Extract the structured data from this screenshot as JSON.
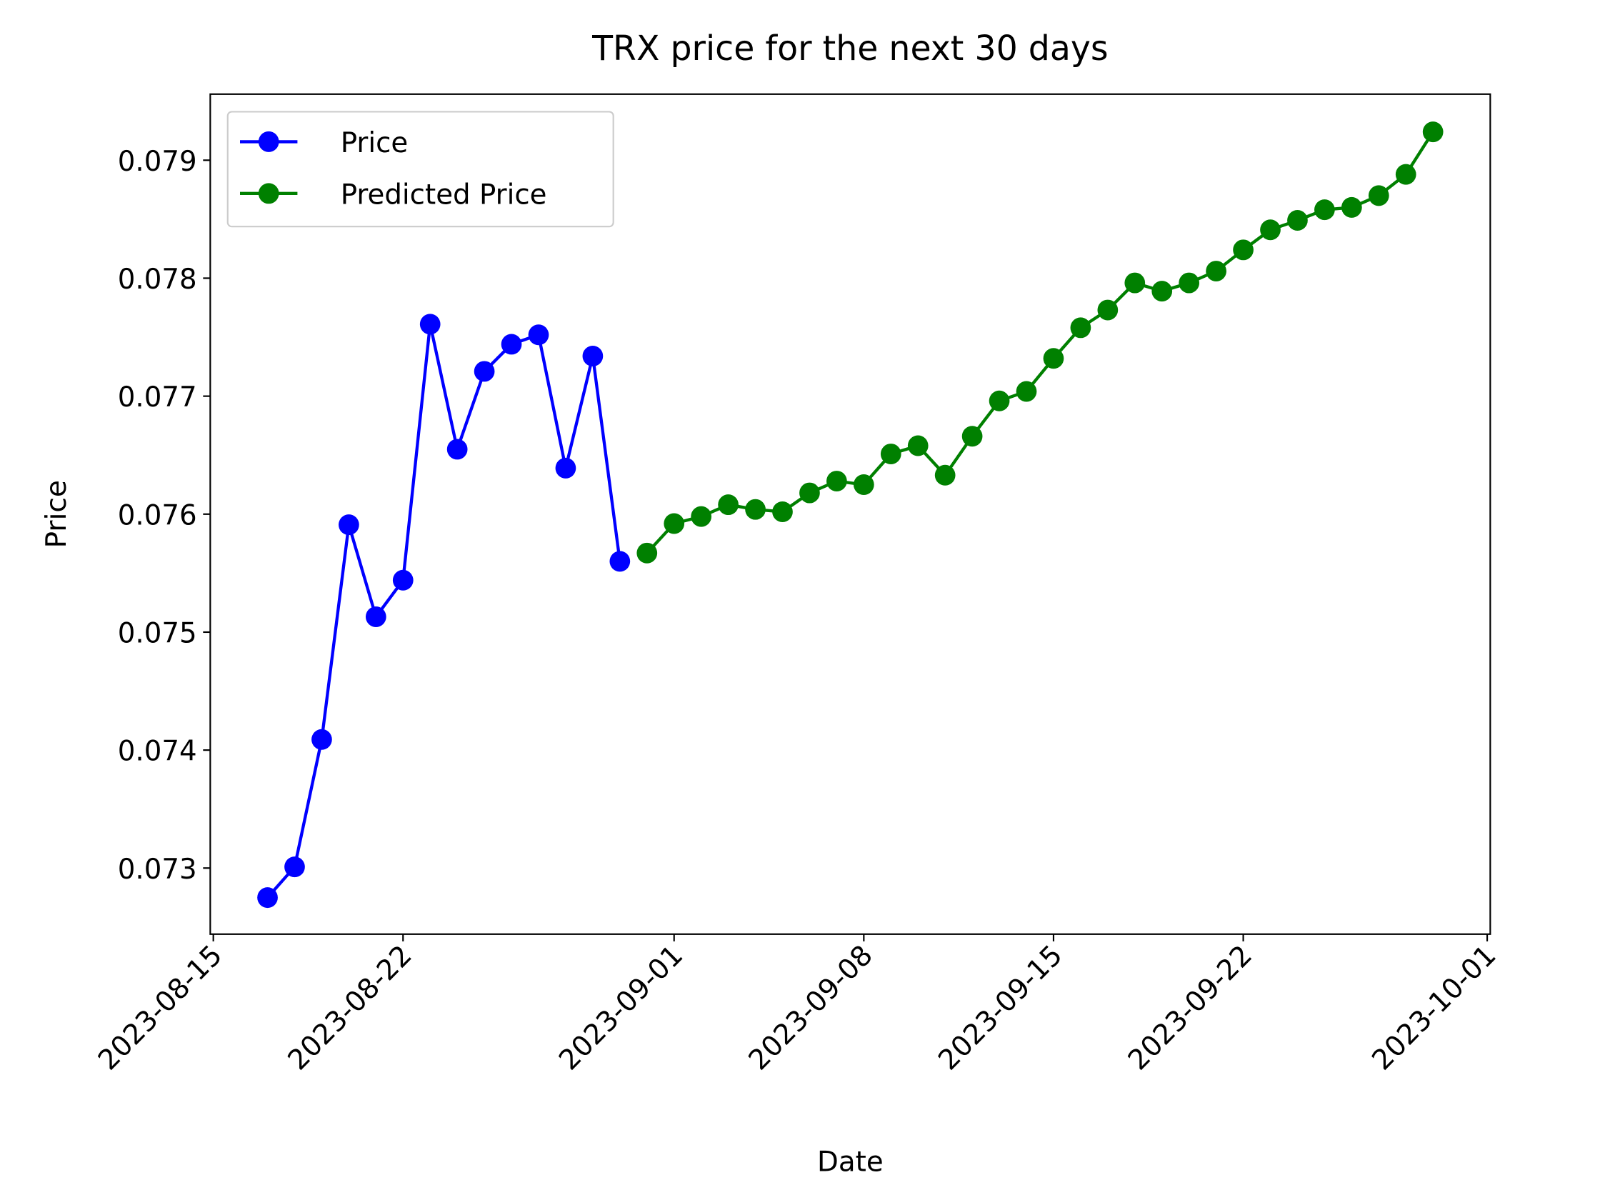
{
  "chart_data": {
    "type": "line",
    "title": "TRX price for the next 30 days",
    "x_label": "Date",
    "y_label": "Price",
    "xlim": [
      "2023-08-14T21:17",
      "2023-10-01T02:43"
    ],
    "xticks": [
      "2023-08-15",
      "2023-08-22",
      "2023-09-01",
      "2023-09-08",
      "2023-09-15",
      "2023-09-22",
      "2023-10-01"
    ],
    "ylim": [
      0.07244,
      0.07956
    ],
    "yticks": [
      0.073,
      0.074,
      0.075,
      0.076,
      0.077,
      0.078,
      0.079
    ],
    "legend": "upper left",
    "series": [
      {
        "name": "Price",
        "color": "#0000ff",
        "x": [
          "2023-08-17",
          "2023-08-18",
          "2023-08-19",
          "2023-08-20",
          "2023-08-21",
          "2023-08-22",
          "2023-08-23",
          "2023-08-24",
          "2023-08-25",
          "2023-08-26",
          "2023-08-27",
          "2023-08-28",
          "2023-08-29",
          "2023-08-30"
        ],
        "values": [
          0.07275,
          0.07301,
          0.07409,
          0.07591,
          0.07513,
          0.07544,
          0.07761,
          0.07655,
          0.07721,
          0.07744,
          0.07752,
          0.07639,
          0.07734,
          0.0756
        ]
      },
      {
        "name": "Predicted Price",
        "color": "#008000",
        "x": [
          "2023-08-31",
          "2023-09-01",
          "2023-09-02",
          "2023-09-03",
          "2023-09-04",
          "2023-09-05",
          "2023-09-06",
          "2023-09-07",
          "2023-09-08",
          "2023-09-09",
          "2023-09-10",
          "2023-09-11",
          "2023-09-12",
          "2023-09-13",
          "2023-09-14",
          "2023-09-15",
          "2023-09-16",
          "2023-09-17",
          "2023-09-18",
          "2023-09-19",
          "2023-09-20",
          "2023-09-21",
          "2023-09-22",
          "2023-09-23",
          "2023-09-24",
          "2023-09-25",
          "2023-09-26",
          "2023-09-27",
          "2023-09-28",
          "2023-09-29"
        ],
        "values": [
          0.07567,
          0.07592,
          0.07598,
          0.07608,
          0.07604,
          0.07602,
          0.07618,
          0.07628,
          0.07625,
          0.07651,
          0.07658,
          0.07633,
          0.07666,
          0.07696,
          0.07704,
          0.07732,
          0.07758,
          0.07773,
          0.07796,
          0.07789,
          0.07796,
          0.07806,
          0.07824,
          0.07841,
          0.07849,
          0.07858,
          0.0786,
          0.0787,
          0.07888,
          0.07924
        ]
      }
    ]
  }
}
